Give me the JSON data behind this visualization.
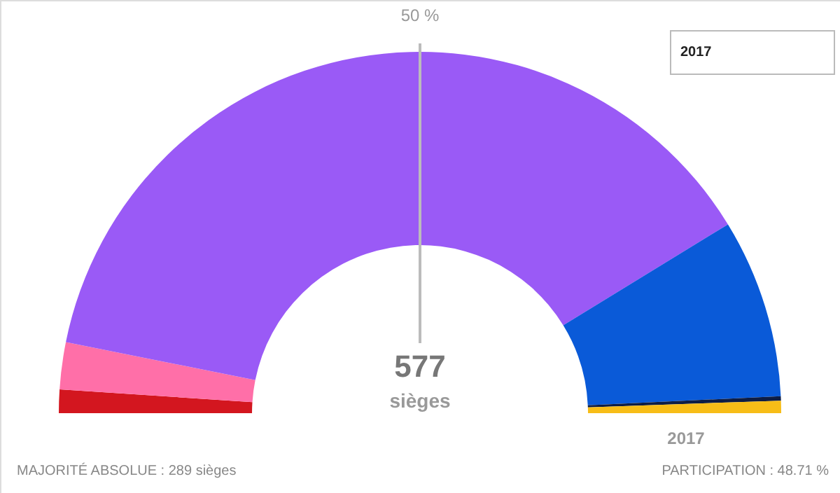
{
  "chart_data": {
    "type": "donut",
    "categories": [
      null,
      null,
      null,
      null,
      null,
      null
    ],
    "values": [
      2.1,
      4.2,
      76.2,
      16.0,
      0.4,
      1.1
    ],
    "colors": [
      "#d3161f",
      "#ff6fa8",
      "#9a5af6",
      "#0a5ad8",
      "#0d1d45",
      "#f7bd17"
    ],
    "annotations": [
      "50 %",
      "577",
      "sièges",
      "2017",
      "2017",
      "MAJORITÉ ABSOLUE : 289 sièges",
      "PARTICIPATION : 48.71 %"
    ]
  }
}
